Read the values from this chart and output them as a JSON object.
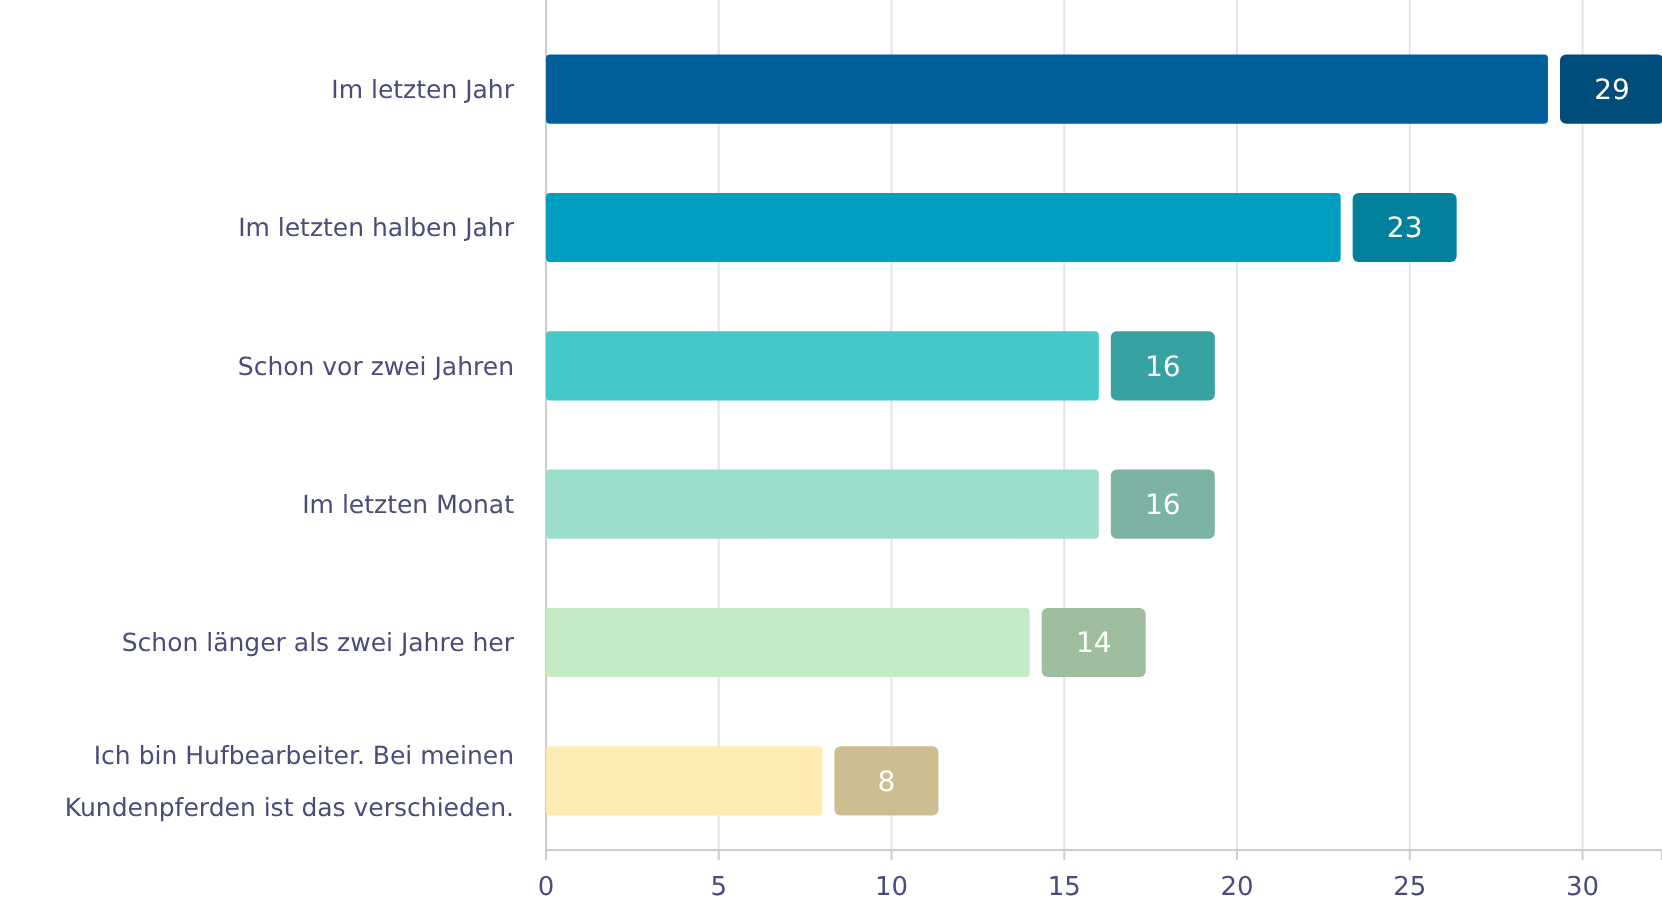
{
  "chart_data": {
    "type": "bar",
    "orientation": "horizontal",
    "categories": [
      "Im letzten Jahr",
      "Im letzten halben Jahr",
      "Schon vor zwei Jahren",
      "Im letzten Monat",
      "Schon länger als zwei Jahre her",
      "Ich bin Hufbearbeiter. Bei meinen Kundenpferden ist das verschieden."
    ],
    "values": [
      29,
      23,
      16,
      16,
      14,
      8
    ],
    "colors": [
      "#005f9a",
      "#009ec0",
      "#45c8c8",
      "#9bdecc",
      "#c5eac5",
      "#fdebb3"
    ],
    "xlim": [
      0,
      32.3
    ],
    "xticks": [
      0,
      5,
      10,
      15,
      20,
      25,
      30
    ],
    "grid": "x",
    "data_labels": true
  }
}
